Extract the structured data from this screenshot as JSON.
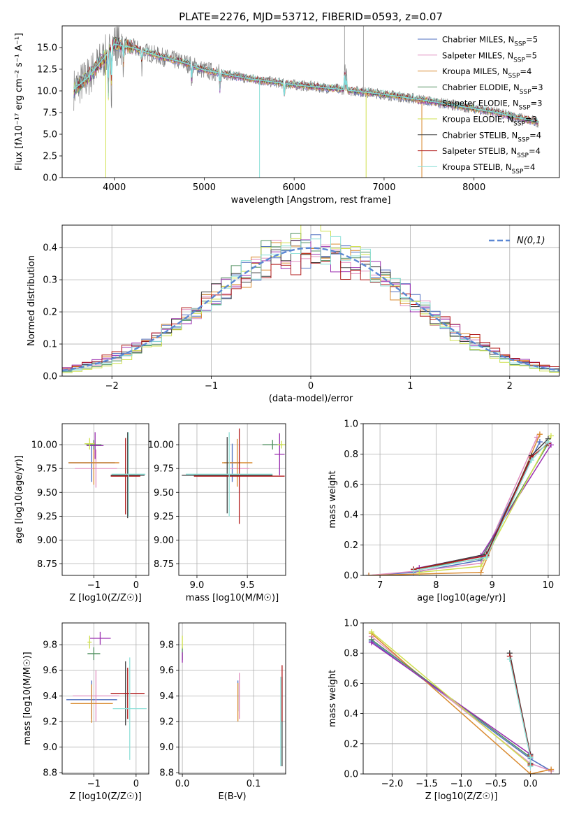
{
  "figure": {
    "title": "PLATE=2276, MJD=53712, FIBERID=0593, z=0.07"
  },
  "series_styles": [
    {
      "name": "Chabrier MILES, N_SSP=5",
      "color": "#4f6fc0"
    },
    {
      "name": "Salpeter MILES, N_SSP=5",
      "color": "#e08fc0"
    },
    {
      "name": "Kroupa MILES, N_SSP=4",
      "color": "#d98a2f"
    },
    {
      "name": "Chabrier ELODIE, N_SSP=3",
      "color": "#4f8f5f"
    },
    {
      "name": "Salpeter ELODIE, N_SSP=3",
      "color": "#9b2fb0"
    },
    {
      "name": "Kroupa ELODIE, N_SSP=3",
      "color": "#cfe04f"
    },
    {
      "name": "Chabrier STELIB, N_SSP=4",
      "color": "#3f3f3f"
    },
    {
      "name": "Salpeter STELIB, N_SSP=4",
      "color": "#b01818"
    },
    {
      "name": "Kroupa STELIB, N_SSP=4",
      "color": "#8fe0d8"
    }
  ],
  "chart_data": [
    {
      "id": "spectrum",
      "type": "line",
      "title": "PLATE=2276, MJD=53712, FIBERID=0593, z=0.07",
      "xlabel": "wavelength [Angstrom, rest frame]",
      "ylabel": "Flux [fλ10⁻¹⁷ erg cm⁻² s⁻¹ A⁻¹]",
      "xlim": [
        3420,
        8950
      ],
      "ylim": [
        0,
        17.5
      ],
      "xticks": [
        4000,
        5000,
        6000,
        7000,
        8000
      ],
      "yticks": [
        0.0,
        2.5,
        5.0,
        7.5,
        10.0,
        12.5,
        15.0
      ],
      "grid": false,
      "legend_position": "top-right",
      "data_color": "#808080",
      "model_color": "#7fdede",
      "continuum": [
        [
          3550,
          10.2
        ],
        [
          3700,
          11.5
        ],
        [
          3900,
          14.0
        ],
        [
          4000,
          15.4
        ],
        [
          4200,
          15.0
        ],
        [
          4500,
          14.0
        ],
        [
          4800,
          13.2
        ],
        [
          5000,
          12.4
        ],
        [
          5500,
          11.4
        ],
        [
          6000,
          10.7
        ],
        [
          6500,
          10.2
        ],
        [
          7000,
          9.6
        ],
        [
          7400,
          9.0
        ],
        [
          7800,
          8.3
        ],
        [
          8200,
          7.6
        ],
        [
          8500,
          6.9
        ],
        [
          8700,
          6.4
        ]
      ],
      "features": [
        [
          3934,
          -6.5
        ],
        [
          3968,
          -5.0
        ],
        [
          4102,
          -2.0
        ],
        [
          4305,
          -2.0
        ],
        [
          4861,
          -2.0
        ],
        [
          5175,
          -2.5
        ],
        [
          5890,
          -2.0
        ],
        [
          6563,
          3.0
        ],
        [
          6583,
          2.0
        ]
      ],
      "model_spikes": [
        {
          "x": 3905,
          "low": 0.0,
          "color": "#cfe04f"
        },
        {
          "x": 5615,
          "low": 0.0,
          "color": "#8fe0d8"
        },
        {
          "x": 6800,
          "low": 0.0,
          "color": "#cfe04f"
        },
        {
          "x": 7420,
          "low": 0.0,
          "color": "#d98a2f"
        }
      ],
      "data_spikes": [
        {
          "x": 6560,
          "high": 17.5
        },
        {
          "x": 6770,
          "high": 17.5
        }
      ]
    },
    {
      "id": "residual-hist",
      "type": "line",
      "xlabel": "(data-model)/error",
      "ylabel": "Normed distribution",
      "xlim": [
        -2.5,
        2.5
      ],
      "ylim": [
        0,
        0.47
      ],
      "xticks": [
        -2,
        -1,
        0,
        1,
        2
      ],
      "yticks": [
        0.0,
        0.1,
        0.2,
        0.3,
        0.4
      ],
      "grid": true,
      "legend_position": "top-right",
      "reference_curve": {
        "name": "N(0,1)",
        "mean": 0,
        "sigma": 1,
        "color": "#5b87d4"
      },
      "bin_width": 0.1,
      "sigma_per_series": [
        1.02,
        1.0,
        1.03,
        0.95,
        1.05,
        0.92,
        1.0,
        1.08,
        0.98
      ]
    },
    {
      "id": "age-vs-z",
      "type": "scatter",
      "xlabel": "Z [log10(Z/Z☉)]",
      "ylabel": "age  [log10(age/yr)]",
      "xlim": [
        -1.75,
        0.3
      ],
      "ylim": [
        8.63,
        10.22
      ],
      "xticks": [
        -1,
        0
      ],
      "yticks": [
        8.75,
        9.0,
        9.25,
        9.5,
        9.75,
        10.0
      ],
      "grid": true,
      "points": [
        {
          "x": -1.05,
          "y": 9.81,
          "xerr": 0.55,
          "yerr": 0.2,
          "color": "#4f6fc0"
        },
        {
          "x": -0.95,
          "y": 9.75,
          "xerr": 0.5,
          "yerr": 0.2,
          "color": "#e08fc0"
        },
        {
          "x": -1.0,
          "y": 9.81,
          "xerr": 0.6,
          "yerr": 0.23,
          "color": "#d98a2f"
        },
        {
          "x": -1.0,
          "y": 10.0,
          "xerr": 0.18,
          "yerr": 0.05,
          "color": "#4f8f5f"
        },
        {
          "x": -0.97,
          "y": 9.99,
          "xerr": 0.2,
          "yerr": 0.14,
          "color": "#9b2fb0"
        },
        {
          "x": -1.1,
          "y": 10.01,
          "xerr": 0.12,
          "yerr": 0.06,
          "color": "#cfe04f"
        },
        {
          "x": -0.2,
          "y": 9.68,
          "xerr": 0.4,
          "yerr": 0.45,
          "color": "#3f3f3f"
        },
        {
          "x": -0.25,
          "y": 9.67,
          "xerr": 0.35,
          "yerr": 0.4,
          "color": "#b01818"
        },
        {
          "x": -0.18,
          "y": 9.69,
          "xerr": 0.4,
          "yerr": 0.44,
          "color": "#8fe0d8"
        }
      ]
    },
    {
      "id": "age-vs-mass",
      "type": "scatter",
      "xlabel": "mass [log10(M/M☉)]",
      "ylabel": "",
      "xlim": [
        8.82,
        9.88
      ],
      "ylim": [
        8.63,
        10.22
      ],
      "xticks": [
        9.0,
        9.5
      ],
      "yticks": [
        8.75,
        9.0,
        9.25,
        9.5,
        9.75,
        10.0
      ],
      "grid": true,
      "points": [
        {
          "x": 9.35,
          "y": 9.81,
          "xerr": 0.08,
          "yerr": 0.2,
          "color": "#4f6fc0"
        },
        {
          "x": 9.42,
          "y": 9.75,
          "xerr": 0.1,
          "yerr": 0.25,
          "color": "#e08fc0"
        },
        {
          "x": 9.4,
          "y": 9.81,
          "xerr": 0.15,
          "yerr": 0.25,
          "color": "#d98a2f"
        },
        {
          "x": 9.75,
          "y": 10.0,
          "xerr": 0.1,
          "yerr": 0.05,
          "color": "#4f8f5f"
        },
        {
          "x": 9.82,
          "y": 9.9,
          "xerr": 0.05,
          "yerr": 0.22,
          "color": "#9b2fb0"
        },
        {
          "x": 9.84,
          "y": 10.0,
          "xerr": 0.04,
          "yerr": 0.04,
          "color": "#cfe04f"
        },
        {
          "x": 9.3,
          "y": 9.68,
          "xerr": 0.45,
          "yerr": 0.4,
          "color": "#3f3f3f"
        },
        {
          "x": 9.42,
          "y": 9.67,
          "xerr": 0.45,
          "yerr": 0.5,
          "color": "#b01818"
        },
        {
          "x": 9.32,
          "y": 9.69,
          "xerr": 0.43,
          "yerr": 0.44,
          "color": "#8fe0d8"
        }
      ]
    },
    {
      "id": "weight-vs-age",
      "type": "line",
      "xlabel": "age  [log10(age/yr)]",
      "ylabel": "mass weight",
      "xlim": [
        6.7,
        10.2
      ],
      "ylim": [
        0,
        1.0
      ],
      "xticks": [
        7,
        8,
        9,
        10
      ],
      "yticks": [
        0.0,
        0.2,
        0.4,
        0.6,
        0.8,
        1.0
      ],
      "grid": true,
      "series": [
        {
          "color": "#4f6fc0",
          "x": [
            6.8,
            7.6,
            8.8,
            9.85
          ],
          "y": [
            0.0,
            0.02,
            0.1,
            0.88
          ]
        },
        {
          "color": "#e08fc0",
          "x": [
            6.8,
            7.7,
            8.8,
            9.8
          ],
          "y": [
            0.0,
            0.03,
            0.08,
            0.91
          ]
        },
        {
          "color": "#d98a2f",
          "x": [
            6.8,
            8.8,
            9.85
          ],
          "y": [
            0.0,
            0.02,
            0.93
          ]
        },
        {
          "color": "#4f8f5f",
          "x": [
            7.6,
            8.8,
            10.0
          ],
          "y": [
            0.04,
            0.11,
            0.87
          ]
        },
        {
          "color": "#9b2fb0",
          "x": [
            7.7,
            8.8,
            10.05
          ],
          "y": [
            0.05,
            0.13,
            0.86
          ]
        },
        {
          "color": "#cfe04f",
          "x": [
            7.7,
            8.8,
            10.05
          ],
          "y": [
            0.02,
            0.06,
            0.92
          ]
        },
        {
          "color": "#3f3f3f",
          "x": [
            7.6,
            8.9,
            9.7,
            10.0
          ],
          "y": [
            0.04,
            0.14,
            0.79,
            0.9
          ]
        },
        {
          "color": "#b01818",
          "x": [
            7.6,
            8.9,
            9.7,
            10.0
          ],
          "y": [
            0.04,
            0.13,
            0.78,
            0.87
          ]
        },
        {
          "color": "#8fe0d8",
          "x": [
            7.6,
            8.9,
            9.7,
            10.0
          ],
          "y": [
            0.03,
            0.12,
            0.76,
            0.88
          ]
        }
      ]
    },
    {
      "id": "mass-vs-z",
      "type": "scatter",
      "xlabel": "Z [log10(Z/Z☉)]",
      "ylabel": "mass [log10(M/M☉)]",
      "xlim": [
        -1.75,
        0.3
      ],
      "ylim": [
        8.79,
        9.97
      ],
      "xticks": [
        -1,
        0
      ],
      "yticks": [
        8.8,
        9.0,
        9.2,
        9.4,
        9.6,
        9.8
      ],
      "grid": true,
      "points": [
        {
          "x": -1.05,
          "y": 9.37,
          "xerr": 0.6,
          "yerr": 0.15,
          "color": "#4f6fc0"
        },
        {
          "x": -0.95,
          "y": 9.4,
          "xerr": 0.55,
          "yerr": 0.2,
          "color": "#e08fc0"
        },
        {
          "x": -1.05,
          "y": 9.34,
          "xerr": 0.5,
          "yerr": 0.15,
          "color": "#d98a2f"
        },
        {
          "x": -1.0,
          "y": 9.73,
          "xerr": 0.15,
          "yerr": 0.05,
          "color": "#4f8f5f"
        },
        {
          "x": -0.85,
          "y": 9.85,
          "xerr": 0.25,
          "yerr": 0.05,
          "color": "#9b2fb0"
        },
        {
          "x": -1.1,
          "y": 9.82,
          "xerr": 0.05,
          "yerr": 0.05,
          "color": "#cfe04f"
        },
        {
          "x": -0.25,
          "y": 9.42,
          "xerr": 0.05,
          "yerr": 0.25,
          "color": "#3f3f3f"
        },
        {
          "x": -0.2,
          "y": 9.42,
          "xerr": 0.4,
          "yerr": 0.2,
          "color": "#b01818"
        },
        {
          "x": -0.15,
          "y": 9.3,
          "xerr": 0.4,
          "yerr": 0.4,
          "color": "#8fe0d8"
        }
      ]
    },
    {
      "id": "mass-vs-ebv",
      "type": "scatter",
      "xlabel": "E(B-V)",
      "ylabel": "",
      "xlim": [
        -0.005,
        0.145
      ],
      "ylim": [
        8.79,
        9.97
      ],
      "xticks": [
        0.0,
        0.1
      ],
      "yticks": [
        8.8,
        9.0,
        9.2,
        9.4,
        9.6,
        9.8
      ],
      "grid": true,
      "points": [
        {
          "x": 0.078,
          "y": 9.4,
          "yerr": 0.12,
          "color": "#4f6fc0"
        },
        {
          "x": 0.08,
          "y": 9.4,
          "yerr": 0.18,
          "color": "#e08fc0"
        },
        {
          "x": 0.078,
          "y": 9.35,
          "yerr": 0.15,
          "color": "#d98a2f"
        },
        {
          "x": 0.0,
          "y": 9.73,
          "yerr": 0.05,
          "color": "#4f8f5f"
        },
        {
          "x": 0.0,
          "y": 9.7,
          "yerr": 0.04,
          "color": "#9b2fb0"
        },
        {
          "x": 0.0,
          "y": 9.82,
          "yerr": 0.05,
          "color": "#cfe04f"
        },
        {
          "x": 0.14,
          "y": 9.2,
          "yerr": 0.35,
          "color": "#3f3f3f"
        },
        {
          "x": 0.14,
          "y": 9.42,
          "yerr": 0.22,
          "color": "#b01818"
        },
        {
          "x": 0.138,
          "y": 9.2,
          "yerr": 0.35,
          "color": "#8fe0d8"
        }
      ]
    },
    {
      "id": "weight-vs-z",
      "type": "line",
      "xlabel": "Z [log10(Z/Z☉)]",
      "ylabel": "mass weight",
      "xlim": [
        -2.42,
        0.42
      ],
      "ylim": [
        0,
        1.0
      ],
      "xticks": [
        -2.0,
        -1.5,
        -1.0,
        -0.5,
        0.0
      ],
      "yticks": [
        0.0,
        0.2,
        0.4,
        0.6,
        0.8,
        1.0
      ],
      "grid": true,
      "series": [
        {
          "color": "#4f6fc0",
          "x": [
            -2.3,
            0.0,
            0.3
          ],
          "y": [
            0.88,
            0.1,
            0.02
          ]
        },
        {
          "color": "#e08fc0",
          "x": [
            -2.3,
            0.0,
            0.3
          ],
          "y": [
            0.91,
            0.07,
            0.02
          ]
        },
        {
          "color": "#d98a2f",
          "x": [
            -2.3,
            0.0,
            0.3
          ],
          "y": [
            0.93,
            0.0,
            0.03
          ]
        },
        {
          "color": "#4f8f5f",
          "x": [
            -2.3,
            0.0
          ],
          "y": [
            0.89,
            0.11
          ]
        },
        {
          "color": "#9b2fb0",
          "x": [
            -2.3,
            0.0
          ],
          "y": [
            0.87,
            0.13
          ]
        },
        {
          "color": "#cfe04f",
          "x": [
            -2.3,
            0.0
          ],
          "y": [
            0.94,
            0.06
          ]
        },
        {
          "color": "#3f3f3f",
          "x": [
            -0.3,
            0.0,
            0.0
          ],
          "y": [
            0.8,
            0.13,
            0.07
          ]
        },
        {
          "color": "#b01818",
          "x": [
            -0.3,
            0.0,
            0.0
          ],
          "y": [
            0.78,
            0.12,
            0.06
          ]
        },
        {
          "color": "#8fe0d8",
          "x": [
            -0.3,
            0.0,
            0.0
          ],
          "y": [
            0.76,
            0.11,
            0.05
          ]
        }
      ]
    }
  ]
}
